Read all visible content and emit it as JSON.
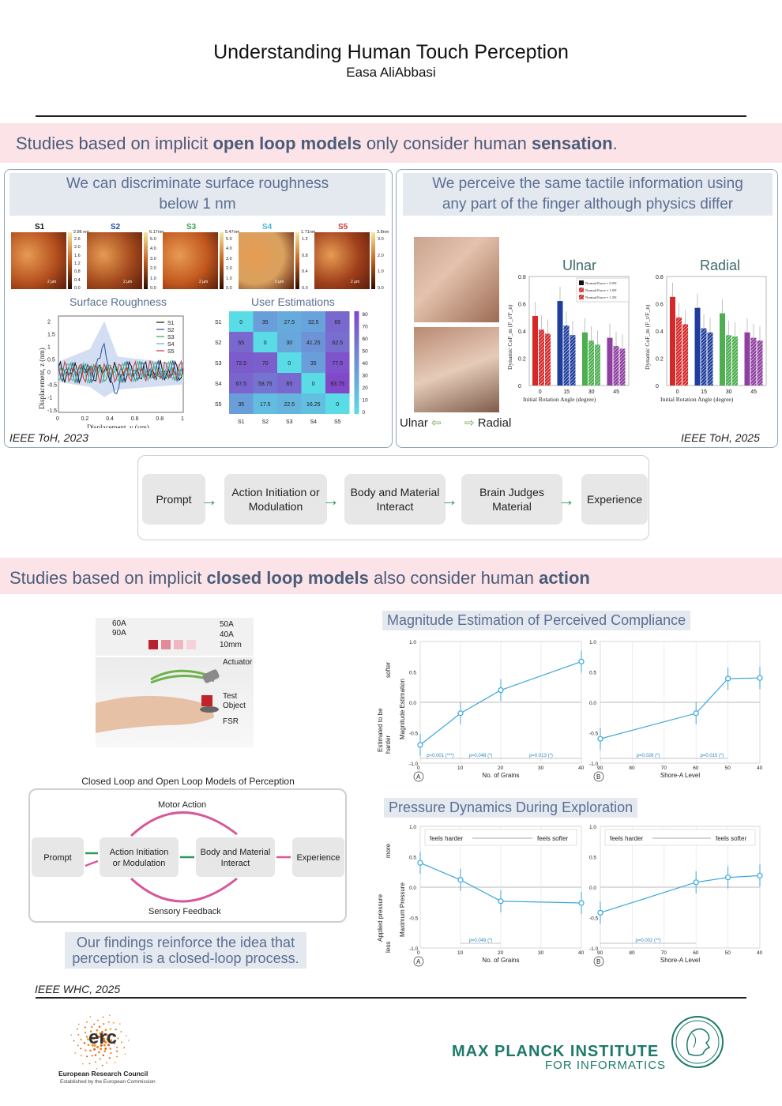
{
  "header": {
    "title": "Understanding Human Touch Perception",
    "author": "Easa AliAbbasi"
  },
  "section1": {
    "pre": "Studies based on implicit ",
    "bold1": "open loop models",
    "mid": " only consider human ",
    "bold2": "sensation",
    "post": "."
  },
  "left_panel": {
    "heading_line1": "We can discriminate surface roughness",
    "heading_line2": "below 1 nm",
    "samples": [
      {
        "label": "S1",
        "color": "#111111",
        "max": "2.86 nm",
        "ticks": [
          "2.6",
          "2.0",
          "1.6",
          "1.2",
          "0.8",
          "0.4",
          "0.0"
        ],
        "scale": "2 µm"
      },
      {
        "label": "S2",
        "color": "#1f4fa8",
        "max": "6.17nm",
        "ticks": [
          "5.0",
          "4.0",
          "3.0",
          "2.0",
          "1.0",
          "0.0"
        ],
        "scale": "2 µm"
      },
      {
        "label": "S3",
        "color": "#3aa64a",
        "max": "5.47nm",
        "ticks": [
          "5.0",
          "4.0",
          "3.0",
          "2.0",
          "1.0",
          "0.0"
        ],
        "scale": "2 µm"
      },
      {
        "label": "S4",
        "color": "#49b6d6",
        "max": "1.71nm",
        "ticks": [
          "1.2",
          "0.8",
          "0.4",
          "0.0"
        ],
        "scale": "2 µm"
      },
      {
        "label": "S5",
        "color": "#d23a2f",
        "max": "3.8nm",
        "ticks": [
          "3.0",
          "2.0",
          "1.0",
          "0.0"
        ],
        "scale": "2 µm"
      }
    ],
    "venue": "IEEE ToH, 2023"
  },
  "roughness_chart": {
    "title": "Surface Roughness",
    "xlabel": "Displacement, y (µm)",
    "ylabel": "Displacement, z (nm)",
    "xticks": [
      "0",
      "0.2",
      "0.4",
      "0.6",
      "0.8",
      "1"
    ],
    "yticks": [
      "2",
      "1.5",
      "1",
      "0.5",
      "0",
      "-0.5",
      "-1",
      "-1.5"
    ],
    "legend": [
      "S1",
      "S2",
      "S3",
      "S4",
      "S5"
    ]
  },
  "user_estimations": {
    "title": "User Estimations",
    "rows": [
      "S1",
      "S2",
      "S3",
      "S4",
      "S5"
    ],
    "cols": [
      "S1",
      "S2",
      "S3",
      "S4",
      "S5"
    ],
    "values": [
      [
        "0",
        "35",
        "27.5",
        "32.5",
        "65"
      ],
      [
        "65",
        "0",
        "30",
        "41.25",
        "62.5"
      ],
      [
        "72.5",
        "70",
        "0",
        "35",
        "77.5"
      ],
      [
        "67.5",
        "58.75",
        "65",
        "0",
        "83.75"
      ],
      [
        "35",
        "17.5",
        "22.5",
        "16.25",
        "0"
      ]
    ],
    "colorbar": [
      "80",
      "70",
      "60",
      "50",
      "40",
      "30",
      "20",
      "10",
      "0"
    ]
  },
  "right_panel": {
    "heading_line1": "We perceive the same tactile information using",
    "heading_line2": "any part of the finger although physics differ",
    "ulnar_label": "Ulnar",
    "radial_label": "Radial",
    "venue": "IEEE ToH, 2025"
  },
  "chart_data": [
    {
      "type": "bar",
      "title": "Ulnar",
      "categories": [
        "0",
        "15",
        "30",
        "45"
      ],
      "xlabel": "Initial Rotation Angle (degree)",
      "ylabel": "Dynamic CoF_m (F_t/F_n)",
      "ylim": [
        0,
        0.8
      ],
      "yticks": [
        "0.8",
        "0.6",
        "0.4",
        "0.2",
        "0"
      ],
      "legend": [
        "Normal Force = 0.5N",
        "Normal Force = 1.0N",
        "Normal Force = 1.5N"
      ],
      "series": [
        {
          "name": "Normal Force = 0.5N",
          "values": [
            0.51,
            0.62,
            0.39,
            0.35
          ]
        },
        {
          "name": "Normal Force = 1.0N",
          "values": [
            0.41,
            0.44,
            0.33,
            0.29
          ]
        },
        {
          "name": "Normal Force = 1.5N",
          "values": [
            0.38,
            0.37,
            0.3,
            0.27
          ]
        }
      ],
      "colors": [
        "#d62828",
        "#1f3d9c",
        "#4caf50",
        "#8e3fa0"
      ]
    },
    {
      "type": "bar",
      "title": "Radial",
      "categories": [
        "0",
        "15",
        "30",
        "45"
      ],
      "xlabel": "Initial Rotation Angle (degree)",
      "ylabel": "Dynamic CoF_m (F_t/F_n)",
      "ylim": [
        0,
        0.8
      ],
      "yticks": [
        "0.8",
        "0.6",
        "0.4",
        "0.2",
        "0"
      ],
      "series": [
        {
          "name": "Normal Force = 0.5N",
          "values": [
            0.65,
            0.57,
            0.53,
            0.39
          ]
        },
        {
          "name": "Normal Force = 1.0N",
          "values": [
            0.5,
            0.42,
            0.37,
            0.35
          ]
        },
        {
          "name": "Normal Force = 1.5N",
          "values": [
            0.45,
            0.39,
            0.36,
            0.33
          ]
        }
      ],
      "colors": [
        "#d62828",
        "#1f3d9c",
        "#4caf50",
        "#8e3fa0"
      ]
    },
    {
      "type": "line",
      "title": "Magnitude Estimation of Perceived Compliance",
      "panel": "A",
      "xlabel": "No. of Grains",
      "x": [
        0,
        10,
        20,
        40
      ],
      "y": [
        -0.7,
        -0.18,
        0.2,
        0.67
      ],
      "xticks": [
        "0",
        "10",
        "20",
        "30",
        "40"
      ],
      "ylim": [
        -1.0,
        1.0
      ],
      "annotations": [
        "p<0.001 (***)",
        "p=0.048 (*)",
        "p=0.013 (*)"
      ]
    },
    {
      "type": "line",
      "panel": "B",
      "xlabel": "Shore-A Level",
      "x": [
        90,
        60,
        50,
        40
      ],
      "y": [
        -0.6,
        -0.18,
        0.39,
        0.4
      ],
      "xticks": [
        "90",
        "80",
        "70",
        "60",
        "50",
        "40"
      ],
      "ylim": [
        -1.0,
        1.0
      ],
      "annotations": [
        "p=0.026 (*)",
        "p=0.015 (*)"
      ]
    },
    {
      "type": "line",
      "title": "Pressure Dynamics During Exploration",
      "panel": "A",
      "xlabel": "No. of Grains",
      "x": [
        0,
        10,
        20,
        40
      ],
      "y": [
        0.4,
        0.12,
        -0.23,
        -0.26
      ],
      "xticks": [
        "0",
        "10",
        "20",
        "30",
        "40"
      ],
      "ylim": [
        -1.0,
        1.0
      ],
      "annotations": [
        "p=0.049 (*)"
      ]
    },
    {
      "type": "line",
      "panel": "B",
      "xlabel": "Shore-A Level",
      "x": [
        90,
        60,
        50,
        40
      ],
      "y": [
        -0.42,
        0.08,
        0.16,
        0.19
      ],
      "xticks": [
        "90",
        "80",
        "70",
        "60",
        "50",
        "40"
      ],
      "ylim": [
        -1.0,
        1.0
      ],
      "annotations": [
        "p=0.002 (**)"
      ]
    }
  ],
  "open_flow": [
    "Prompt",
    "Action Initiation or Modulation",
    "Body and Material Interact",
    "Brain Judges Material",
    "Experience"
  ],
  "section2": {
    "pre": "Studies based on implicit ",
    "bold1": "closed loop models",
    "mid": " also consider human ",
    "bold2": "action"
  },
  "setup": {
    "objects_left": "60A\n90A",
    "objects_right": "50A\n40A\n10mm",
    "actuator": "Actuator",
    "test_object": "Test\nObject",
    "fsr": "FSR"
  },
  "closed_diagram": {
    "title": "Closed Loop and Open Loop Models of Perception",
    "motor": "Motor Action",
    "sensory": "Sensory Feedback",
    "boxes": [
      "Prompt",
      "Action Initiation or Modulation",
      "Body and Material Interact",
      "Experience"
    ]
  },
  "findings": {
    "line1": "Our findings reinforce the idea that",
    "line2": "perception is a closed-loop process."
  },
  "venue3": "IEEE WHC, 2025",
  "compliance_labels": {
    "y1": "Estimated to be",
    "y2": "Magnitude Estimation",
    "softer": "softer",
    "harder": "harder",
    "pA": "A",
    "pB": "B"
  },
  "pressure_labels": {
    "y1": "Applied pressure",
    "y2": "Maximum Pressure",
    "more": "more",
    "less": "less",
    "harder": "feels harder",
    "softer": "feels softer"
  },
  "yticks_line": [
    "1.0",
    "0.5",
    "0.0",
    "-0.5",
    "-1.0"
  ],
  "footer": {
    "erc": "erc",
    "erc_name": "European Research Council",
    "erc_sub": "Established by the European Commission",
    "mpi1": "MAX PLANCK INSTITUTE",
    "mpi2": "FOR INFORMATICS"
  }
}
